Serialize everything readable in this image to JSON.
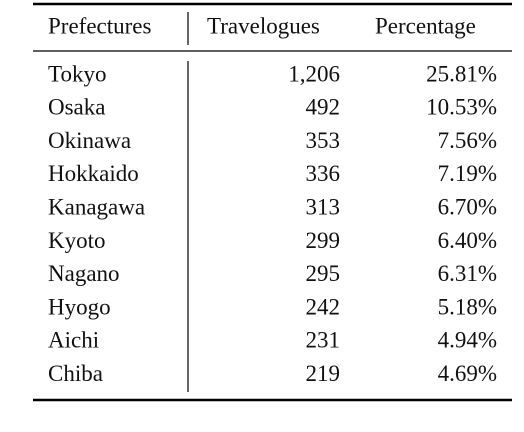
{
  "table": {
    "header": [
      "Prefectures",
      "Travelogues",
      "Percentage"
    ],
    "rows": [
      [
        "Tokyo",
        "1,206",
        "25.81%"
      ],
      [
        "Osaka",
        "492",
        "10.53%"
      ],
      [
        "Okinawa",
        "353",
        "7.56%"
      ],
      [
        "Hokkaido",
        "336",
        "7.19%"
      ],
      [
        "Kanagawa",
        "313",
        "6.70%"
      ],
      [
        "Kyoto",
        "299",
        "6.40%"
      ],
      [
        "Nagano",
        "295",
        "6.31%"
      ],
      [
        "Hyogo",
        "242",
        "5.18%"
      ],
      [
        "Aichi",
        "231",
        "4.94%"
      ],
      [
        "Chiba",
        "219",
        "4.69%"
      ]
    ]
  }
}
